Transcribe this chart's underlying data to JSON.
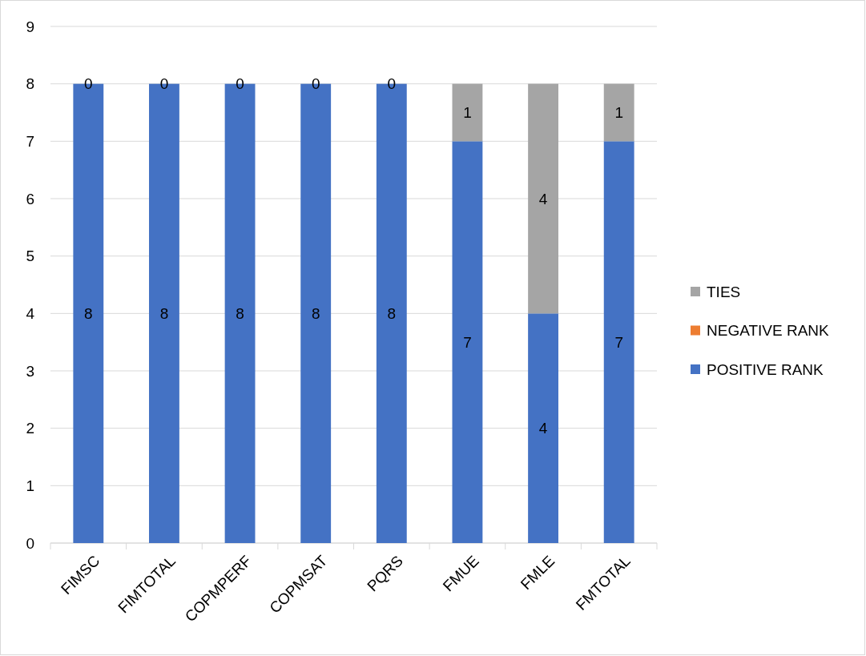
{
  "chart_data": {
    "type": "bar",
    "stacked": true,
    "categories": [
      "FIMSC",
      "FIMTOTAL",
      "COPMPERF",
      "COPMSAT",
      "PQRS",
      "FMUE",
      "FMLE",
      "FMTOTAL"
    ],
    "series": [
      {
        "name": "POSITIVE RANK",
        "color": "#4472c4",
        "values": [
          8,
          8,
          8,
          8,
          8,
          7,
          4,
          7
        ],
        "value_labels": [
          "8",
          "8",
          "8",
          "8",
          "8",
          "7",
          "4",
          "7"
        ]
      },
      {
        "name": "NEGATIVE RANK",
        "color": "#ed7d31",
        "values": [
          0,
          0,
          0,
          0,
          0,
          0,
          0,
          0
        ],
        "value_labels": [
          null,
          null,
          null,
          null,
          null,
          null,
          null,
          null
        ]
      },
      {
        "name": "TIES",
        "color": "#a5a5a5",
        "values": [
          0,
          0,
          0,
          0,
          0,
          1,
          4,
          1
        ],
        "value_labels": [
          "0",
          "0",
          "0",
          "0",
          "0",
          "1",
          "4",
          "1"
        ]
      }
    ],
    "ylim": [
      0,
      9
    ],
    "yticks": [
      0,
      1,
      2,
      3,
      4,
      5,
      6,
      7,
      8,
      9
    ],
    "grid": "y",
    "legend": "right"
  }
}
